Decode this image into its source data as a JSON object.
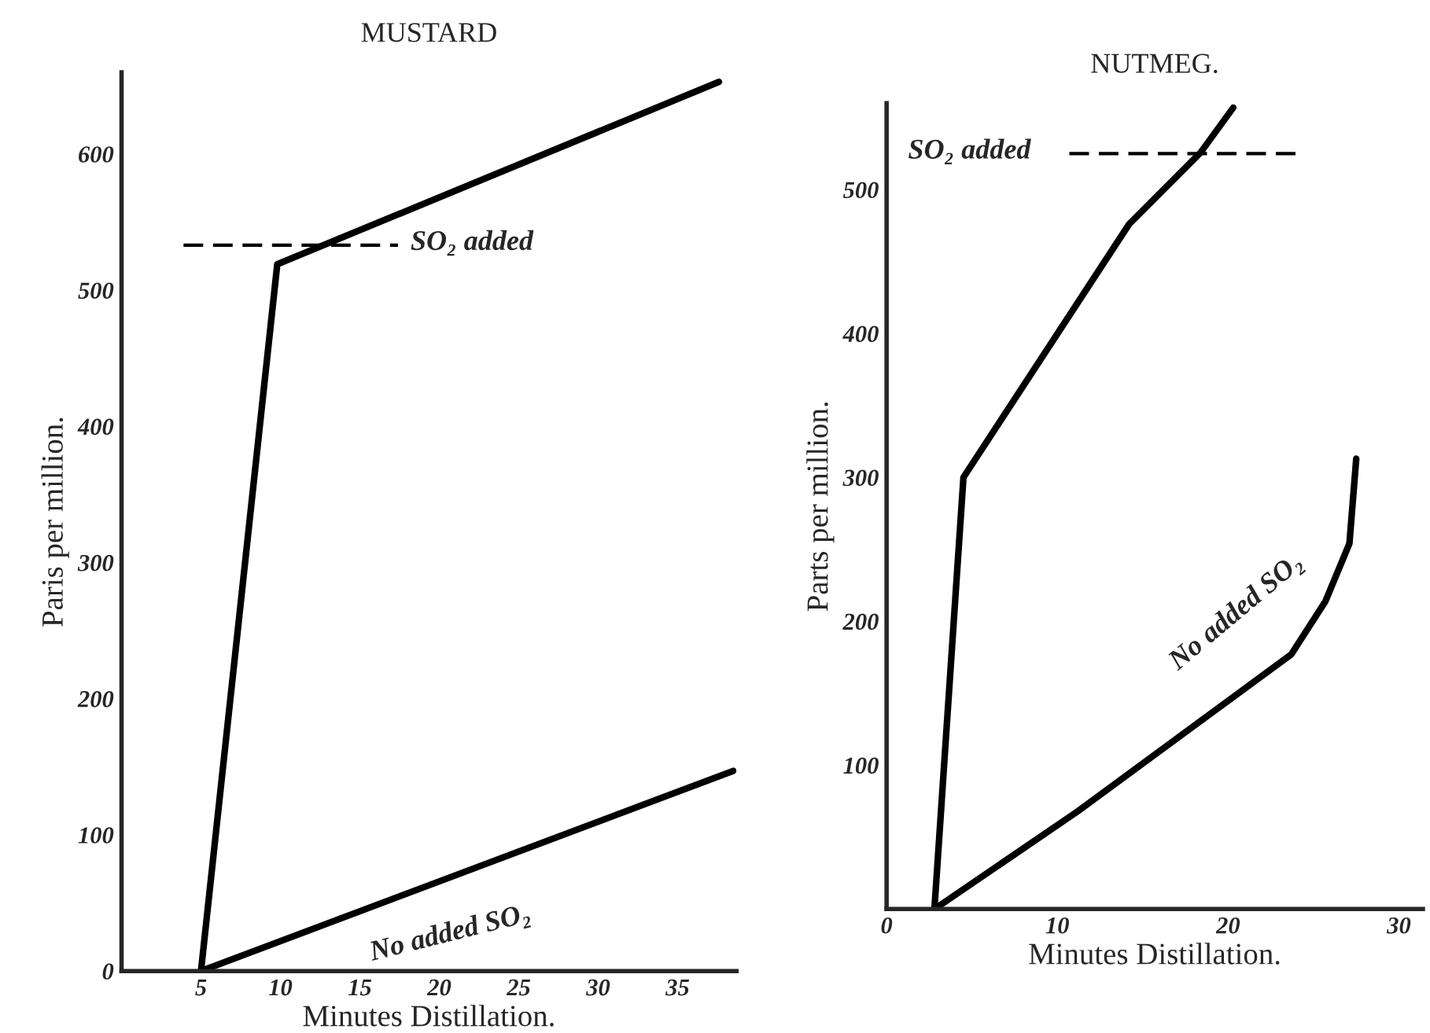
{
  "chart_data": [
    {
      "type": "line",
      "title": "MUSTARD",
      "xlabel": "Minutes Distillation.",
      "ylabel": "Paris per million.",
      "xlim": [
        0,
        38.7
      ],
      "ylim": [
        0,
        660
      ],
      "xticks": [
        5,
        10,
        15,
        20,
        25,
        30,
        35
      ],
      "yticks": [
        0,
        100,
        200,
        300,
        400,
        500,
        600
      ],
      "grid": false,
      "legend": false,
      "marker": "none",
      "series": [
        {
          "color": "#000000",
          "x": [
            5,
            9.8,
            37.6
          ],
          "values": [
            0,
            519,
            653
          ],
          "line_style": "solid"
        },
        {
          "color": "#000000",
          "x": [
            5,
            38.5
          ],
          "values": [
            0,
            147
          ],
          "line_style": "solid"
        },
        {
          "color": "#000000",
          "x": [
            3.9,
            17.4
          ],
          "values": [
            533,
            533
          ],
          "line_style": "dashed"
        }
      ],
      "annotations": [
        "SO₂ added",
        "No added SO₂"
      ]
    },
    {
      "type": "line",
      "title": "NUTMEG.",
      "xlabel": "Minutes Distillation.",
      "ylabel": "Parts per million.",
      "xlim": [
        0,
        31.4
      ],
      "ylim": [
        0,
        560
      ],
      "xticks": [
        0,
        10,
        20,
        30
      ],
      "yticks": [
        100,
        200,
        300,
        400,
        500
      ],
      "grid": false,
      "legend": false,
      "marker": "none",
      "series": [
        {
          "color": "#000000",
          "x": [
            2.8,
            4.5,
            14.2,
            18.4,
            20.3
          ],
          "values": [
            0,
            300,
            476,
            526,
            557
          ],
          "line_style": "solid"
        },
        {
          "color": "#000000",
          "x": [
            2.8,
            11.2,
            23.7,
            25.7,
            27.1,
            27.5
          ],
          "values": [
            0,
            68,
            177,
            214,
            254,
            313
          ],
          "line_style": "solid"
        },
        {
          "color": "#000000",
          "x": [
            10.7,
            24
          ],
          "values": [
            525,
            525
          ],
          "line_style": "dashed"
        }
      ],
      "annotations": [
        "SO₂ added",
        "No added SO₂"
      ]
    }
  ]
}
